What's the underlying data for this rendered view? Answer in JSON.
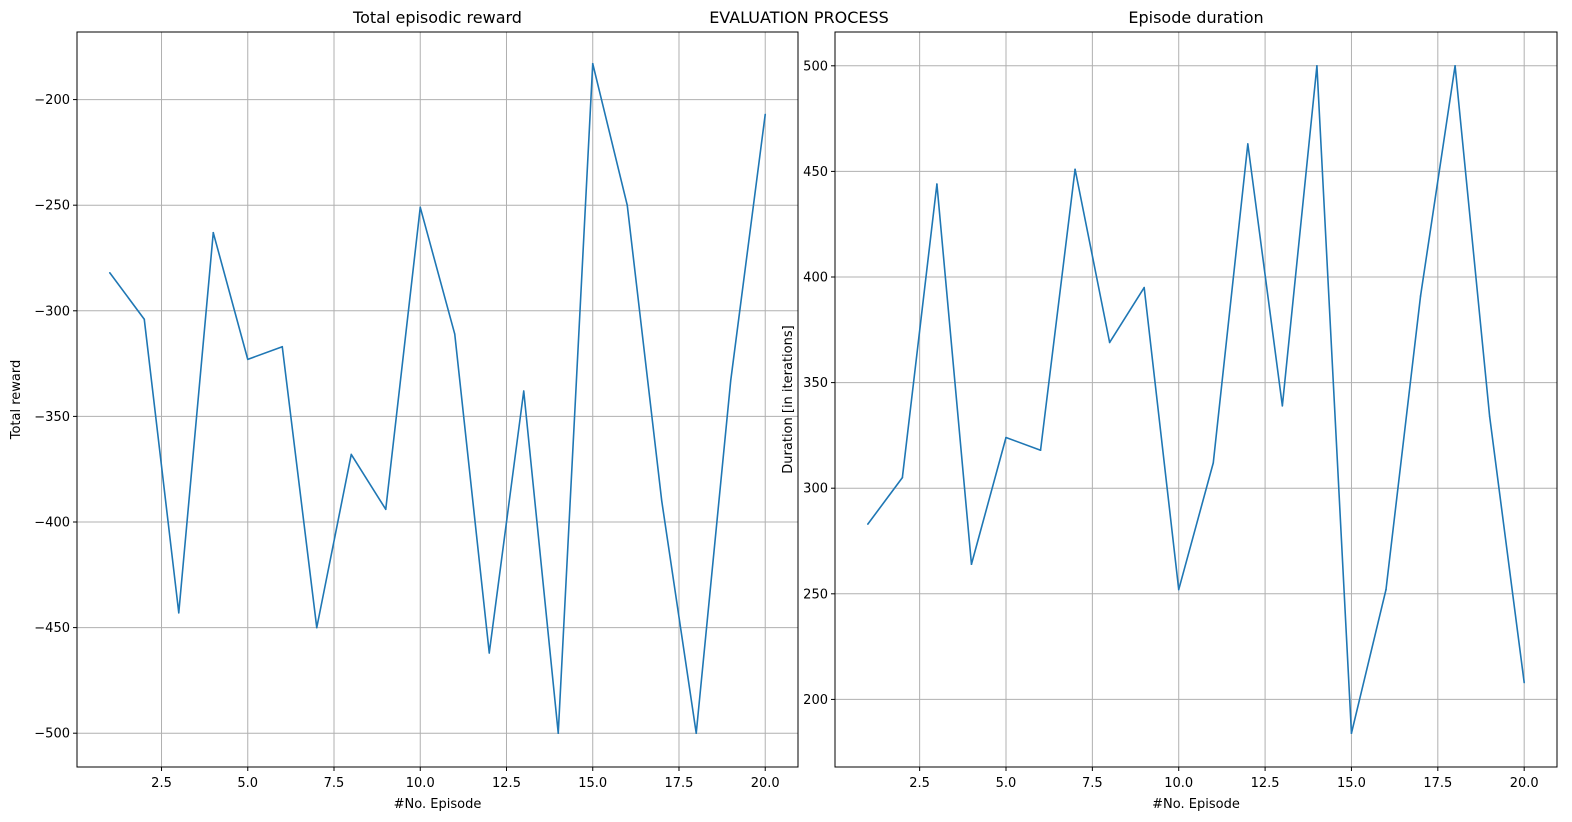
{
  "figure": {
    "suptitle": "EVALUATION PROCESS"
  },
  "colors": {
    "series": "#1f77b4",
    "grid": "#b0b0b0",
    "frame": "#000000"
  },
  "chart_data": [
    {
      "type": "line",
      "title": "Total episodic reward",
      "xlabel": "#No. Episode",
      "ylabel": "Total reward",
      "grid": true,
      "xlim": [
        0.05,
        20.95
      ],
      "ylim": [
        -516,
        -168
      ],
      "xticks": [
        2.5,
        5.0,
        7.5,
        10.0,
        12.5,
        15.0,
        17.5,
        20.0
      ],
      "xtick_labels": [
        "2.5",
        "5.0",
        "7.5",
        "10.0",
        "12.5",
        "15.0",
        "17.5",
        "20.0"
      ],
      "yticks": [
        -200,
        -250,
        -300,
        -350,
        -400,
        -450,
        -500
      ],
      "ytick_labels": [
        "−200",
        "−250",
        "−300",
        "−350",
        "−400",
        "−450",
        "−500"
      ],
      "series": [
        {
          "x": [
            1,
            2,
            3,
            4,
            5,
            6,
            7,
            8,
            9,
            10,
            11,
            12,
            13,
            14,
            15,
            16,
            17,
            18,
            19,
            20
          ],
          "values": [
            -282,
            -304,
            -443,
            -263,
            -323,
            -317,
            -450,
            -368,
            -394,
            -251,
            -311,
            -462,
            -338,
            -500,
            -183,
            -250,
            -390,
            -500,
            -333,
            -207
          ]
        }
      ]
    },
    {
      "type": "line",
      "title": "Episode duration",
      "xlabel": "#No. Episode",
      "ylabel": "Duration [in iterations]",
      "grid": true,
      "xlim": [
        0.05,
        20.95
      ],
      "ylim": [
        168,
        516
      ],
      "xticks": [
        2.5,
        5.0,
        7.5,
        10.0,
        12.5,
        15.0,
        17.5,
        20.0
      ],
      "xtick_labels": [
        "2.5",
        "5.0",
        "7.5",
        "10.0",
        "12.5",
        "15.0",
        "17.5",
        "20.0"
      ],
      "yticks": [
        200,
        250,
        300,
        350,
        400,
        450,
        500
      ],
      "ytick_labels": [
        "200",
        "250",
        "300",
        "350",
        "400",
        "450",
        "500"
      ],
      "series": [
        {
          "x": [
            1,
            2,
            3,
            4,
            5,
            6,
            7,
            8,
            9,
            10,
            11,
            12,
            13,
            14,
            15,
            16,
            17,
            18,
            19,
            20
          ],
          "values": [
            283,
            305,
            444,
            264,
            324,
            318,
            451,
            369,
            395,
            252,
            312,
            463,
            339,
            500,
            184,
            252,
            391,
            500,
            334,
            208
          ]
        }
      ]
    }
  ]
}
